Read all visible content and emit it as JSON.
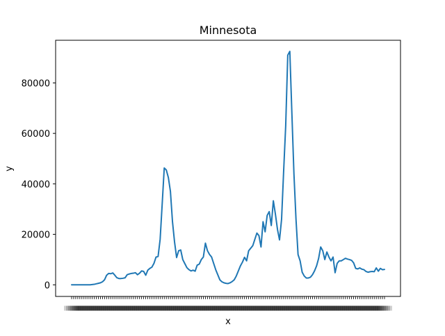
{
  "chart_data": {
    "type": "line",
    "title": "Minnesota",
    "xlabel": "x",
    "ylabel": "y",
    "ylim": [
      -4600,
      96900
    ],
    "yticks": [
      0,
      20000,
      40000,
      60000,
      80000
    ],
    "ytick_labels": [
      "0",
      "20000",
      "40000",
      "60000",
      "80000"
    ],
    "x_tick_labels_note": "overlapping unreadable categorical labels",
    "series": [
      {
        "name": "y",
        "color": "#1f77b4",
        "values": [
          0,
          0,
          0,
          0,
          0,
          0,
          0,
          0,
          0,
          0,
          100,
          200,
          400,
          600,
          800,
          1200,
          2000,
          3800,
          4500,
          4400,
          4700,
          3800,
          2800,
          2500,
          2500,
          2600,
          2800,
          4000,
          4300,
          4500,
          4600,
          4800,
          4000,
          4600,
          5500,
          5300,
          3800,
          5800,
          6500,
          7000,
          8500,
          11000,
          11200,
          18000,
          32000,
          46300,
          45500,
          42500,
          37000,
          25000,
          17000,
          10800,
          13500,
          13800,
          10000,
          8400,
          6800,
          6000,
          5500,
          5800,
          5400,
          7800,
          8200,
          10000,
          11000,
          16500,
          13500,
          12000,
          11000,
          8500,
          6000,
          4000,
          2000,
          1200,
          800,
          600,
          500,
          800,
          1300,
          2000,
          3500,
          5500,
          7500,
          9000,
          10900,
          9500,
          13500,
          14500,
          15500,
          18000,
          20500,
          19500,
          15000,
          25000,
          21000,
          27500,
          29000,
          23500,
          33300,
          28000,
          22000,
          17800,
          26000,
          45000,
          63000,
          91000,
          92500,
          68000,
          44000,
          26000,
          12000,
          9500,
          5000,
          3500,
          2700,
          2700,
          3000,
          4000,
          5500,
          7500,
          10500,
          15000,
          13500,
          10000,
          13000,
          11000,
          9500,
          11000,
          4800,
          8500,
          9500,
          9500,
          10000,
          10500,
          10200,
          10000,
          9700,
          8700,
          6500,
          6300,
          6700,
          6200,
          6000,
          5300,
          5000,
          5200,
          5300,
          5200,
          6700,
          5400,
          6500,
          6000,
          6100
        ]
      }
    ]
  }
}
